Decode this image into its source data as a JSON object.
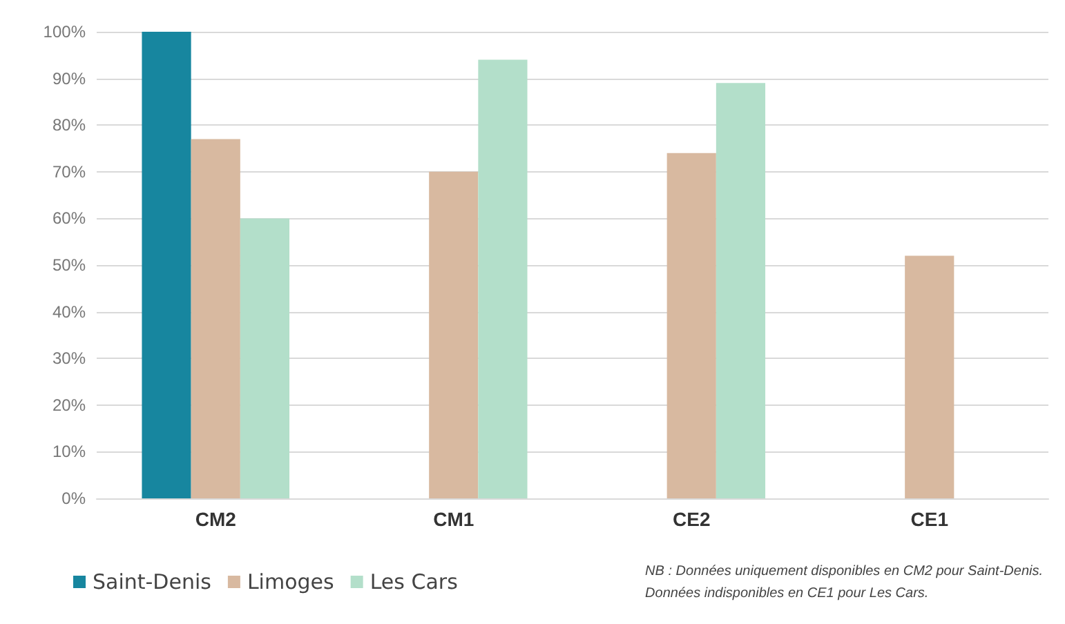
{
  "chart_data": {
    "type": "bar",
    "categories": [
      "CM2",
      "CM1",
      "CE2",
      "CE1"
    ],
    "series": [
      {
        "name": "Saint-Denis",
        "color": "#17869f",
        "values": [
          100,
          null,
          null,
          null
        ]
      },
      {
        "name": "Limoges",
        "color": "#d8b9a0",
        "values": [
          77,
          70,
          74,
          52
        ]
      },
      {
        "name": "Les Cars",
        "color": "#b3dfca",
        "values": [
          60,
          94,
          89,
          null
        ]
      }
    ],
    "ylim": [
      0,
      100
    ],
    "yticks": [
      {
        "value": 0,
        "label": "0%"
      },
      {
        "value": 10,
        "label": "10%"
      },
      {
        "value": 20,
        "label": "20%"
      },
      {
        "value": 30,
        "label": "30%"
      },
      {
        "value": 40,
        "label": "40%"
      },
      {
        "value": 50,
        "label": "50%"
      },
      {
        "value": 60,
        "label": "60%"
      },
      {
        "value": 70,
        "label": "70%"
      },
      {
        "value": 80,
        "label": "80%"
      },
      {
        "value": 90,
        "label": "90%"
      },
      {
        "value": 100,
        "label": "100%"
      }
    ],
    "grid": "y",
    "legend": "bottom left",
    "annotations": [
      "NB : Données uniquement disponibles en CM2 pour Saint-Denis.\nDonnées indisponibles en CE1 pour Les Cars."
    ]
  }
}
